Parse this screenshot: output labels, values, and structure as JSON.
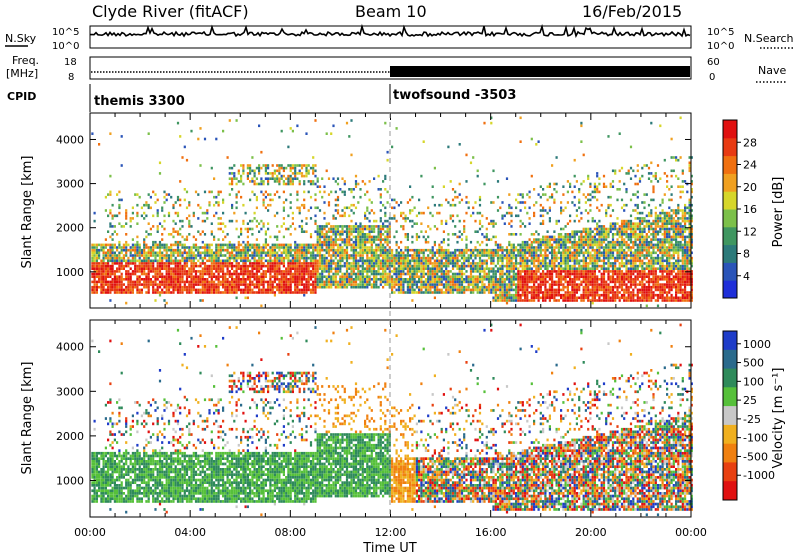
{
  "header": {
    "title": "Clyde River (fitACF)",
    "beam": "Beam 10",
    "date": "16/Feb/2015"
  },
  "top_panels": {
    "nsky_label": "N.Sky",
    "nsky_ticks": [
      "10^5",
      "10^0"
    ],
    "nsearch_label": "N.Search",
    "nsearch_ticks": [
      "10^5",
      "10^0"
    ],
    "freq_label_1": "Freq.",
    "freq_label_2": "[MHz]",
    "freq_ticks": [
      "18",
      "8"
    ],
    "nave_label": "Nave",
    "nave_ticks": [
      "60",
      "0"
    ],
    "cpid_label": "CPID",
    "cpid_modes": [
      {
        "name": "themis 3300",
        "start_hour": 0
      },
      {
        "name": "twofsound -3503",
        "start_hour": 12
      }
    ]
  },
  "chart_data": [
    {
      "type": "heatmap",
      "title": "",
      "ylabel": "Slant Range [km]",
      "xlabel": "",
      "x_range_hours": [
        0,
        24
      ],
      "ylim": [
        180,
        4600
      ],
      "yticks": [
        "1000",
        "2000",
        "3000",
        "4000"
      ],
      "colorbar": {
        "label": "Power [dB]",
        "ticks": [
          "4",
          "8",
          "12",
          "16",
          "20",
          "24",
          "28"
        ],
        "range": [
          0,
          30
        ],
        "colors": [
          "#1f2fd9",
          "#2a54b8",
          "#2c7a7a",
          "#3f9660",
          "#7cc04a",
          "#d6d62a",
          "#f0a020",
          "#f07010",
          "#e83a12",
          "#e01010"
        ]
      },
      "note": "Backscatter concentrated near 500-1500 km with strongest power 00:00-08:00"
    },
    {
      "type": "heatmap",
      "title": "",
      "ylabel": "Slant Range [km]",
      "xlabel": "Time UT",
      "x_range_hours": [
        0,
        24
      ],
      "xticks": [
        "00:00",
        "04:00",
        "08:00",
        "12:00",
        "16:00",
        "20:00",
        "00:00"
      ],
      "ylim": [
        180,
        4600
      ],
      "yticks": [
        "1000",
        "2000",
        "3000",
        "4000"
      ],
      "colorbar": {
        "label": "Velocity [m s⁻¹]",
        "ticks": [
          "1000",
          "500",
          "100",
          "25",
          "-25",
          "-100",
          "-500",
          "-1000"
        ],
        "range": [
          -1000,
          1000
        ],
        "colors": [
          "#1e3cc8",
          "#2a6a8c",
          "#2e8a5a",
          "#56c03a",
          "#c8c8c8",
          "#f0b020",
          "#f08010",
          "#e84010",
          "#e01010"
        ]
      },
      "note": "Mostly positive (green) velocities 00:00-12:00, mixed after 16:00"
    }
  ]
}
